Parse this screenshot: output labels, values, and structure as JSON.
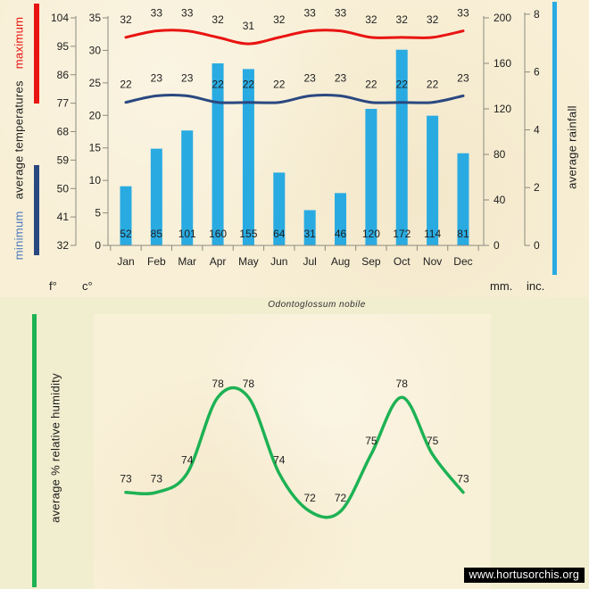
{
  "watermark": {
    "text": "www.hortusorchis.org"
  },
  "top_chart": {
    "left_legend": {
      "minimum": "minimum",
      "middle": "average temperatures",
      "maximum": "maximum"
    },
    "right_legend": "average rainfall"
  },
  "bottom_chart": {
    "title": "Odontoglossum nobile",
    "left_legend": "average % relative humidity"
  },
  "chart_data": {
    "categories": [
      "Jan",
      "Feb",
      "Mar",
      "Apr",
      "May",
      "Jun",
      "Jul",
      "Aug",
      "Sep",
      "Oct",
      "Nov",
      "Dec"
    ],
    "top": {
      "type": "bar+line",
      "series": [
        {
          "name": "maximum temperature",
          "type": "line",
          "unit": "c",
          "color": "#e81411",
          "values": [
            32,
            33,
            33,
            32,
            31,
            32,
            33,
            33,
            32,
            32,
            32,
            33
          ]
        },
        {
          "name": "minimum temperature",
          "type": "line",
          "unit": "c",
          "color": "#2a4880",
          "values": [
            22,
            23,
            23,
            22,
            22,
            22,
            23,
            23,
            22,
            22,
            22,
            23
          ]
        },
        {
          "name": "average rainfall",
          "type": "bar",
          "unit": "mm",
          "color": "#29abe2",
          "values": [
            52,
            85,
            101,
            160,
            155,
            64,
            31,
            46,
            120,
            172,
            114,
            81
          ]
        }
      ],
      "axes": {
        "f": {
          "label": "f°",
          "ticks": [
            104,
            95,
            86,
            77,
            68,
            59,
            50,
            41,
            32
          ]
        },
        "c": {
          "label": "c°",
          "ticks": [
            35,
            30,
            25,
            20,
            15,
            10,
            5,
            0
          ],
          "range": [
            0,
            35
          ]
        },
        "mm": {
          "label": "mm.",
          "ticks": [
            200,
            160,
            120,
            80,
            40,
            0
          ],
          "range": [
            0,
            200
          ]
        },
        "inc": {
          "label": "inc.",
          "ticks": [
            8,
            6,
            4,
            2,
            0
          ]
        }
      },
      "minimum_label_color": "#4a78bd",
      "grid": false,
      "legend_position": "left-rotated"
    },
    "bottom": {
      "type": "line",
      "title": "Odontoglossum nobile",
      "name": "average % relative humidity",
      "color": "#1db254",
      "values": [
        73,
        73,
        74,
        78,
        78,
        74,
        72,
        72,
        75,
        78,
        75,
        73
      ],
      "value_range_shown": [
        72,
        78
      ],
      "grid": false
    }
  }
}
